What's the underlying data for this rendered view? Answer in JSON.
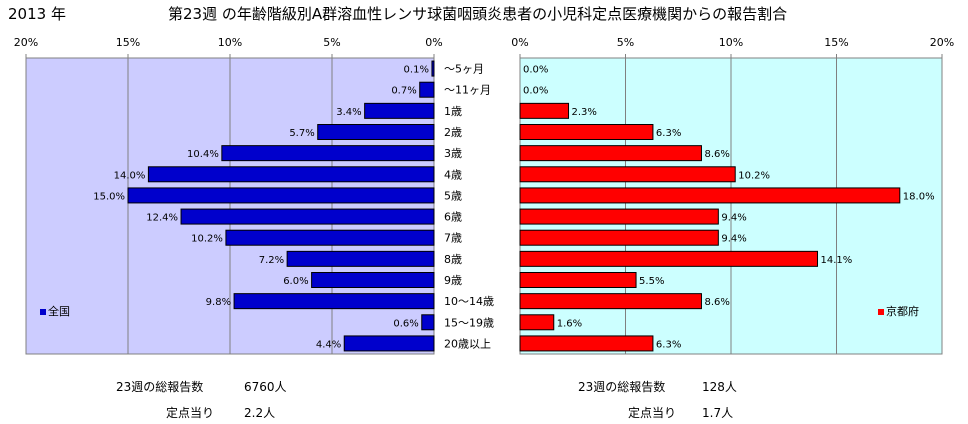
{
  "header": {
    "year": "2013 年",
    "title": "第23週 の年齢階級別A群溶血性レンサ球菌咽頭炎患者の小児科定点医療機関からの報告割合"
  },
  "chart_data": [
    {
      "type": "bar",
      "orientation": "horizontal",
      "direction": "right-to-left",
      "categories": [
        "～5ヶ月",
        "～11ヶ月",
        "1歳",
        "2歳",
        "3歳",
        "4歳",
        "5歳",
        "6歳",
        "7歳",
        "8歳",
        "9歳",
        "10～14歳",
        "15～19歳",
        "20歳以上"
      ],
      "series": [
        {
          "name": "全国",
          "color": "#0000cc",
          "values": [
            0.1,
            0.7,
            3.4,
            5.7,
            10.4,
            14.0,
            15.0,
            12.4,
            10.2,
            7.2,
            6.0,
            9.8,
            0.6,
            4.4
          ],
          "labels": [
            "0.1%",
            "0.7%",
            "3.4%",
            "5.7%",
            "10.4%",
            "14.0%",
            "15.0%",
            "12.4%",
            "10.2%",
            "7.2%",
            "6.0%",
            "9.8%",
            "0.6%",
            "4.4%"
          ]
        }
      ],
      "xlim": [
        0,
        20
      ],
      "xticks": [
        "20%",
        "15%",
        "10%",
        "5%",
        "0%"
      ],
      "plot_bg": "#ccccff",
      "grid": true,
      "legend": "bottom-left"
    },
    {
      "type": "bar",
      "orientation": "horizontal",
      "direction": "left-to-right",
      "categories": [
        "～5ヶ月",
        "～11ヶ月",
        "1歳",
        "2歳",
        "3歳",
        "4歳",
        "5歳",
        "6歳",
        "7歳",
        "8歳",
        "9歳",
        "10～14歳",
        "15～19歳",
        "20歳以上"
      ],
      "series": [
        {
          "name": "京都府",
          "color": "#ff0000",
          "values": [
            0.0,
            0.0,
            2.3,
            6.3,
            8.6,
            10.2,
            18.0,
            9.4,
            9.4,
            14.1,
            5.5,
            8.6,
            1.6,
            6.3
          ],
          "labels": [
            "0.0%",
            "0.0%",
            "2.3%",
            "6.3%",
            "8.6%",
            "10.2%",
            "18.0%",
            "9.4%",
            "9.4%",
            "14.1%",
            "5.5%",
            "8.6%",
            "1.6%",
            "6.3%"
          ]
        }
      ],
      "xlim": [
        0,
        20
      ],
      "xticks": [
        "0%",
        "5%",
        "10%",
        "15%",
        "20%"
      ],
      "plot_bg": "#ccffff",
      "grid": true,
      "legend": "bottom-right"
    }
  ],
  "stats": {
    "national": {
      "total_label": "23週の総報告数",
      "total_value": "6760人",
      "per_label": "定点当り",
      "per_value": "2.2人"
    },
    "kyoto": {
      "total_label": "23週の総報告数",
      "total_value": "128人",
      "per_label": "定点当り",
      "per_value": "1.7人"
    }
  }
}
